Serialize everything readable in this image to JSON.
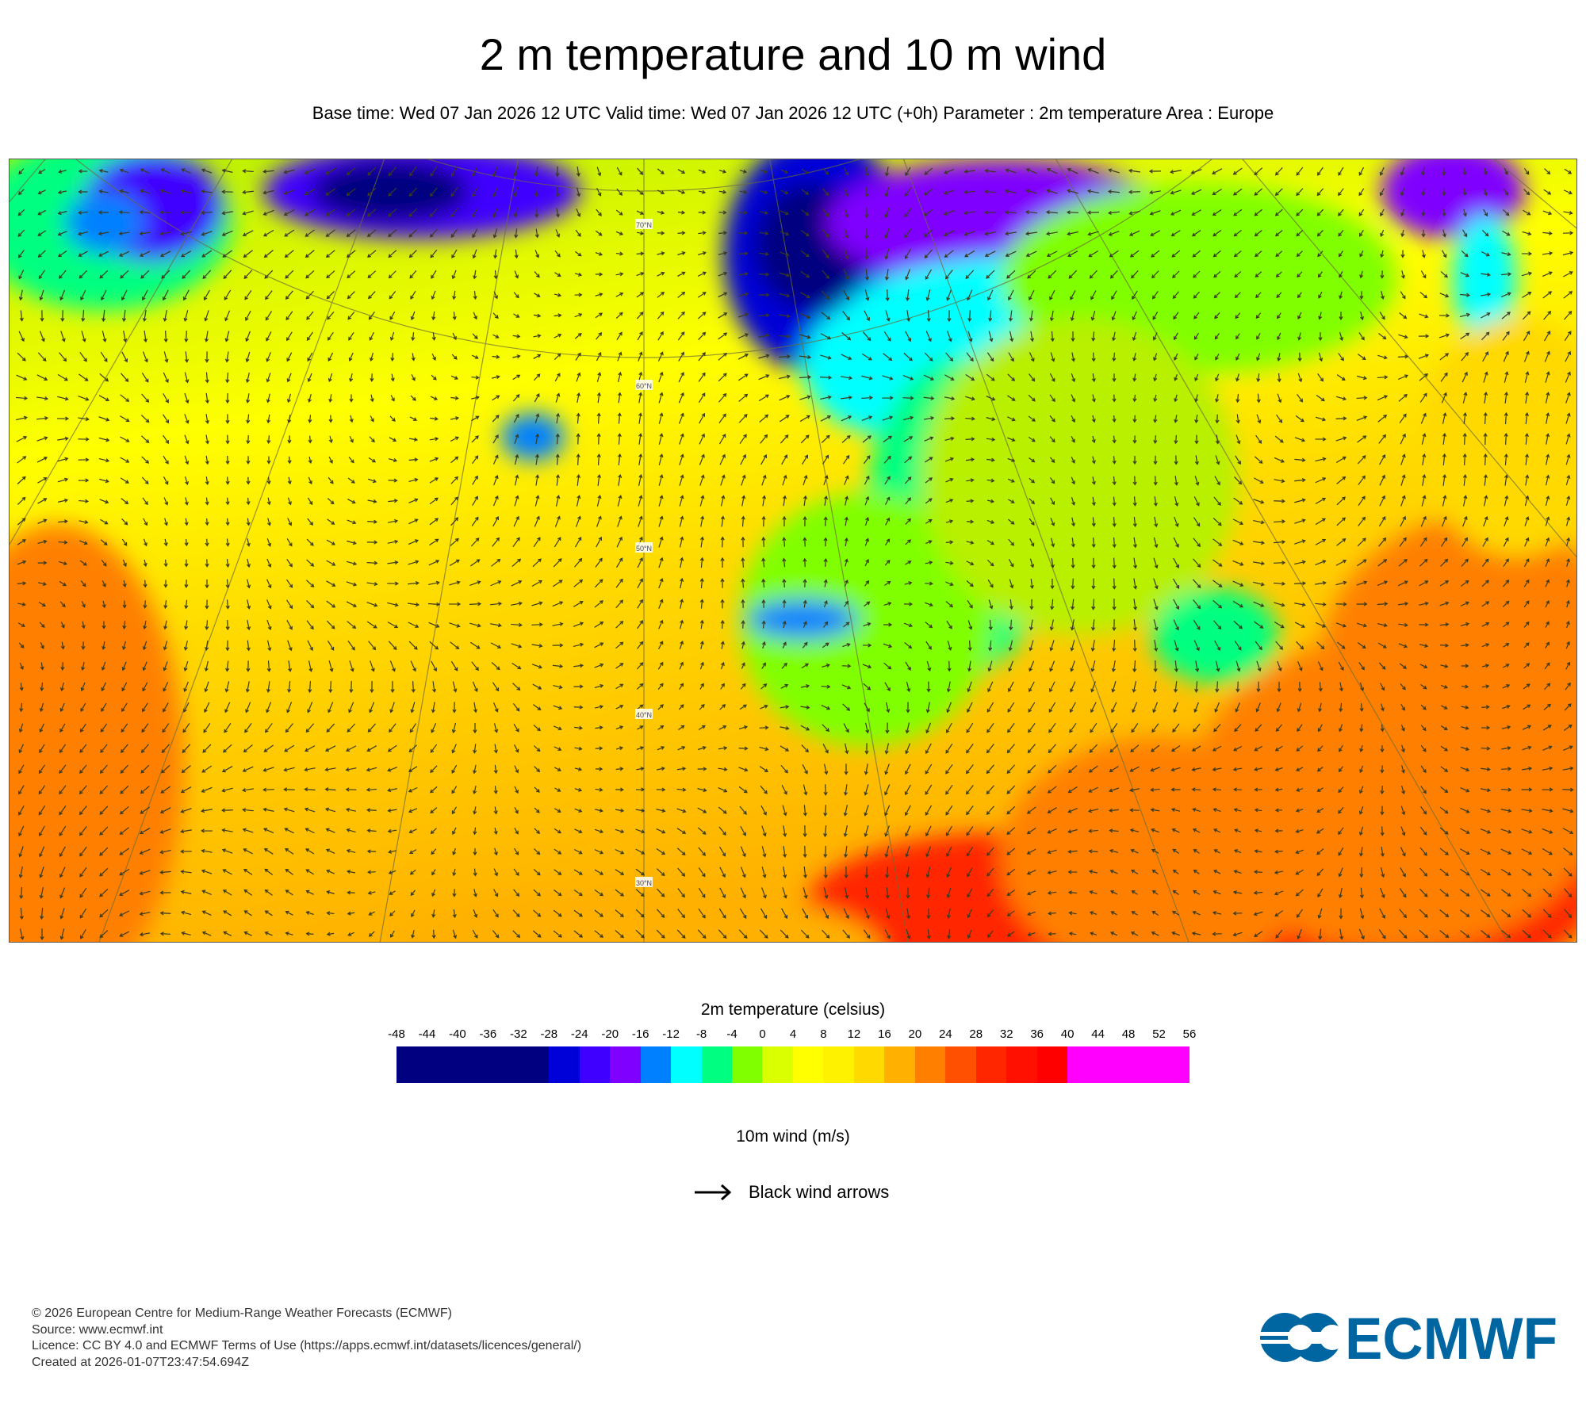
{
  "title": "2 m temperature and 10 m wind",
  "subtitle": "Base time: Wed 07 Jan 2026 12 UTC Valid time: Wed 07 Jan 2026 12 UTC (+0h) Parameter : 2m temperature Area : Europe",
  "map": {
    "latitude_labels": [
      "70°N",
      "60°N",
      "50°N",
      "40°N",
      "30°N"
    ]
  },
  "legend": {
    "title": "2m temperature (celsius)",
    "ticks": [
      "-48",
      "-44",
      "-40",
      "-36",
      "-32",
      "-28",
      "-24",
      "-20",
      "-16",
      "-12",
      "-8",
      "-4",
      "0",
      "4",
      "8",
      "12",
      "16",
      "20",
      "24",
      "28",
      "32",
      "36",
      "40",
      "44",
      "48",
      "52",
      "56"
    ],
    "bins": [
      {
        "from": -48,
        "to": -28,
        "color": "#000080"
      },
      {
        "from": -28,
        "to": -24,
        "color": "#0000d8"
      },
      {
        "from": -24,
        "to": -20,
        "color": "#3f00ff"
      },
      {
        "from": -20,
        "to": -16,
        "color": "#7f00ff"
      },
      {
        "from": -16,
        "to": -12,
        "color": "#0080ff"
      },
      {
        "from": -12,
        "to": -8,
        "color": "#00ffff"
      },
      {
        "from": -8,
        "to": -4,
        "color": "#00ff80"
      },
      {
        "from": -4,
        "to": 0,
        "color": "#80ff00"
      },
      {
        "from": 0,
        "to": 4,
        "color": "#d9ff00"
      },
      {
        "from": 4,
        "to": 8,
        "color": "#ffff00"
      },
      {
        "from": 8,
        "to": 12,
        "color": "#fff200"
      },
      {
        "from": 12,
        "to": 16,
        "color": "#ffd900"
      },
      {
        "from": 16,
        "to": 20,
        "color": "#ffb000"
      },
      {
        "from": 20,
        "to": 24,
        "color": "#ff8000"
      },
      {
        "from": 24,
        "to": 28,
        "color": "#ff4f00"
      },
      {
        "from": 28,
        "to": 32,
        "color": "#ff2600"
      },
      {
        "from": 32,
        "to": 36,
        "color": "#ff1000"
      },
      {
        "from": 36,
        "to": 40,
        "color": "#ff0000"
      },
      {
        "from": 40,
        "to": 56,
        "color": "#ff00ff"
      }
    ]
  },
  "wind_legend": {
    "title": "10m wind (m/s)",
    "label": "Black wind arrows",
    "icon": "arrow-right-icon"
  },
  "footer": {
    "lines": [
      "© 2026 European Centre for Medium-Range Weather Forecasts (ECMWF)",
      "Source: www.ecmwf.int",
      "Licence: CC BY 4.0 and ECMWF Terms of Use (https://apps.ecmwf.int/datasets/licences/general/)",
      "Created at 2026-01-07T23:47:54.694Z"
    ],
    "logo_text": "ECMWF",
    "logo_color": "#0066a1"
  }
}
